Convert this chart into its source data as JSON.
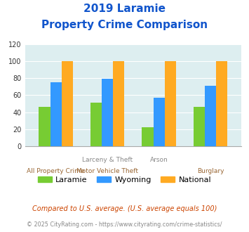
{
  "title_line1": "2019 Laramie",
  "title_line2": "Property Crime Comparison",
  "laramie": [
    46,
    51,
    22,
    46
  ],
  "wyoming": [
    75,
    79,
    57,
    71
  ],
  "national": [
    100,
    100,
    100,
    100
  ],
  "color_laramie": "#77cc33",
  "color_wyoming": "#3399ff",
  "color_national": "#ffaa22",
  "ylim": [
    0,
    120
  ],
  "yticks": [
    0,
    20,
    40,
    60,
    80,
    100,
    120
  ],
  "bg_color": "#ddeef0",
  "fig_bg": "#ffffff",
  "title_color": "#1155cc",
  "xlabel_color_top": "#888888",
  "xlabel_color_bot": "#996633",
  "legend_label_laramie": "Laramie",
  "legend_label_wyoming": "Wyoming",
  "legend_label_national": "National",
  "footnote1": "Compared to U.S. average. (U.S. average equals 100)",
  "footnote2": "© 2025 CityRating.com - https://www.cityrating.com/crime-statistics/",
  "footnote1_color": "#cc4400",
  "footnote2_color": "#888888",
  "bar_width": 0.22,
  "line1_labels": [
    "",
    "Larceny & Theft",
    "Arson",
    ""
  ],
  "line2_labels": [
    "All Property Crime",
    "Motor Vehicle Theft",
    "",
    "Burglary"
  ]
}
